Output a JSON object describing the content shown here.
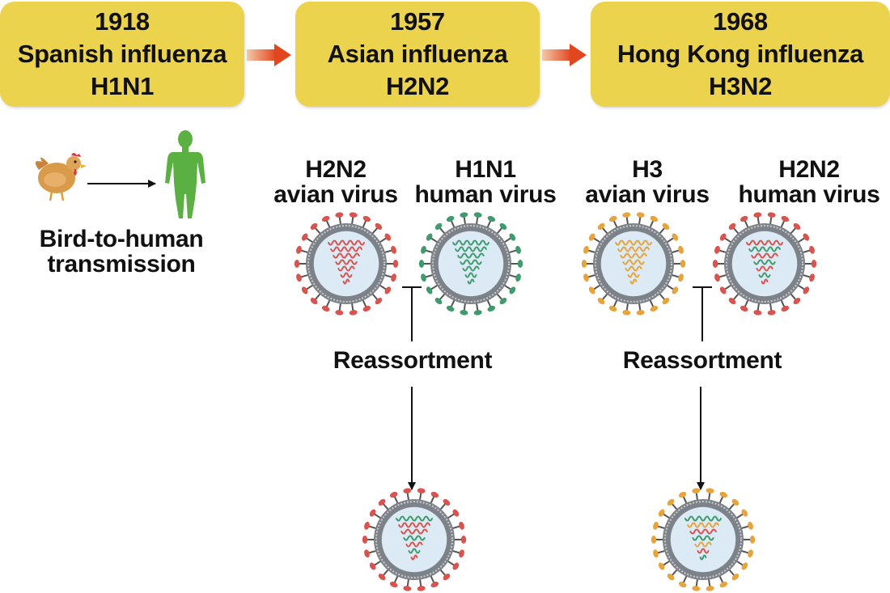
{
  "pandemics": [
    {
      "year": "1918",
      "name": "Spanish influenza",
      "subtype": "H1N1"
    },
    {
      "year": "1957",
      "name": "Asian influenza",
      "subtype": "H2N2"
    },
    {
      "year": "1968",
      "name": "Hong Kong influenza",
      "subtype": "H3N2"
    }
  ],
  "transmission": {
    "line1": "Bird-to-human",
    "line2": "transmission"
  },
  "viruses": [
    {
      "line1": "H2N2",
      "line2": "avian virus"
    },
    {
      "line1": "H1N1",
      "line2": "human virus"
    },
    {
      "line1": "H3",
      "line2": "avian virus"
    },
    {
      "line1": "H2N2",
      "line2": "human virus"
    }
  ],
  "reassortment_label": "Reassortment",
  "colors": {
    "box_fill": "#ecd34e",
    "arrow": "#e2461f",
    "red_virus": "#d9534f",
    "green_virus": "#3f9b6e",
    "orange_virus": "#e8a33a",
    "human_figure": "#5ab040"
  }
}
